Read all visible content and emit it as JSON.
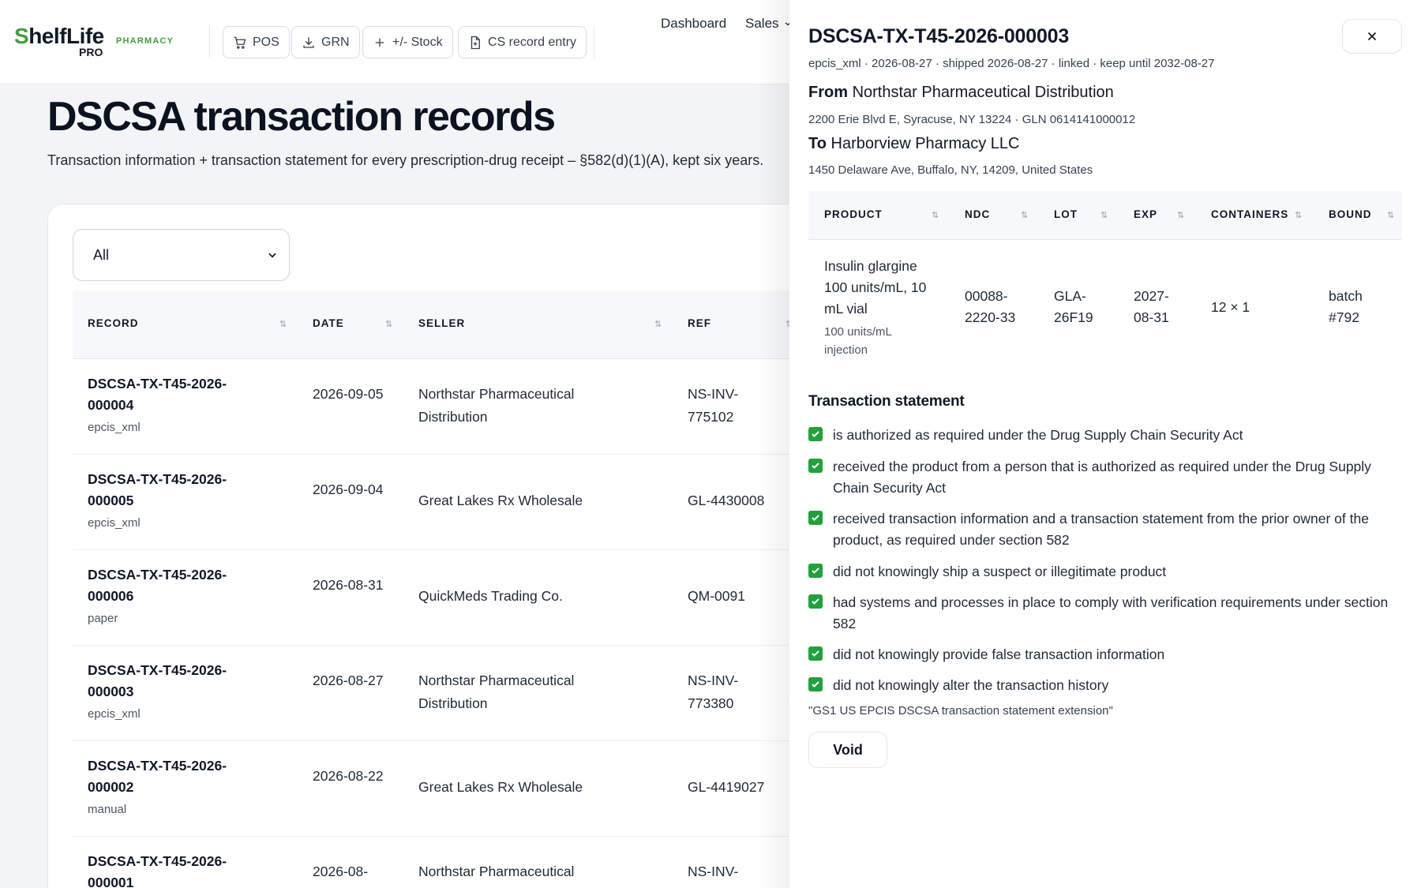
{
  "brand": {
    "logo_first": "S",
    "logo_rest": "helfLife",
    "logo_pro": "PRO",
    "tag": "PHARMACY",
    "accent": "#3f9d3f"
  },
  "toolbar": {
    "pos": "POS",
    "grn": "GRN",
    "stock": "+/- Stock",
    "cs_record": "CS record entry"
  },
  "nav": {
    "dashboard": "Dashboard",
    "sales": "Sales"
  },
  "page": {
    "title": "DSCSA transaction records",
    "subtitle": "Transaction information + transaction statement for every prescription-drug receipt – §582(d)(1)(A), kept six years.",
    "filter_value": "All"
  },
  "table": {
    "headers": {
      "record": "RECORD",
      "date": "DATE",
      "seller": "SELLER",
      "ref": "REF"
    },
    "sort_glyph": "⇅",
    "rows": [
      {
        "id": "DSCSA-TX-T45-2026-000004",
        "source": "epcis_xml",
        "date": "2026-09-05",
        "seller": "Northstar Pharmaceutical Distribution",
        "ref": "NS-INV-775102"
      },
      {
        "id": "DSCSA-TX-T45-2026-000005",
        "source": "epcis_xml",
        "date": "2026-09-04",
        "seller": "Great Lakes Rx Wholesale",
        "ref": "GL-4430008"
      },
      {
        "id": "DSCSA-TX-T45-2026-000006",
        "source": "paper",
        "date": "2026-08-31",
        "seller": "QuickMeds Trading Co.",
        "ref": "QM-0091"
      },
      {
        "id": "DSCSA-TX-T45-2026-000003",
        "source": "epcis_xml",
        "date": "2026-08-27",
        "seller": "Northstar Pharmaceutical Distribution",
        "ref": "NS-INV-773380"
      },
      {
        "id": "DSCSA-TX-T45-2026-000002",
        "source": "manual",
        "date": "2026-08-22",
        "seller": "Great Lakes Rx Wholesale",
        "ref": "GL-4419027"
      },
      {
        "id": "DSCSA-TX-T45-2026-000001",
        "source": "",
        "date": "2026-08-",
        "seller": "Northstar Pharmaceutical",
        "ref": "NS-INV-"
      }
    ]
  },
  "drawer": {
    "title": "DSCSA-TX-T45-2026-000003",
    "meta": "epcis_xml · 2026-08-27 · shipped 2026-08-27 · linked · keep until 2032-08-27",
    "from_label": "From",
    "from_name": "Northstar Pharmaceutical Distribution",
    "from_addr": "2200 Erie Blvd E, Syracuse, NY 13224 · GLN 0614141000012",
    "to_label": "To",
    "to_name": "Harborview Pharmacy LLC",
    "to_addr": "1450 Delaware Ave, Buffalo, NY, 14209, United States",
    "product_headers": {
      "product": "PRODUCT",
      "ndc": "NDC",
      "lot": "LOT",
      "exp": "EXP",
      "containers": "CONTAINERS",
      "bound": "BOUND"
    },
    "product": {
      "name": "Insulin glargine 100 units/mL, 10 mL vial",
      "form": "100 units/mL injection",
      "ndc": "00088-2220-33",
      "lot": "GLA-26F19",
      "exp": "2027-08-31",
      "containers": "12 × 1",
      "bound": "batch #792"
    },
    "statement_title": "Transaction statement",
    "statements": [
      "is authorized as required under the Drug Supply Chain Security Act",
      "received the product from a person that is authorized as required under the Drug Supply Chain Security Act",
      "received transaction information and a transaction statement from the prior owner of the product, as required under section 582",
      "did not knowingly ship a suspect or illegitimate product",
      "had systems and processes in place to comply with verification requirements under section 582",
      "did not knowingly provide false transaction information",
      "did not knowingly alter the transaction history"
    ],
    "statement_extension": "\"GS1 US EPCIS DSCSA transaction statement extension\"",
    "void_label": "Void"
  },
  "colors": {
    "check": "#22a03c",
    "page_bg": "#f3f4f6"
  },
  "icons": [
    "cart-icon",
    "download-icon",
    "plus-icon",
    "document-icon",
    "chevron-down-icon",
    "close-icon",
    "check-icon",
    "sort-icon"
  ]
}
